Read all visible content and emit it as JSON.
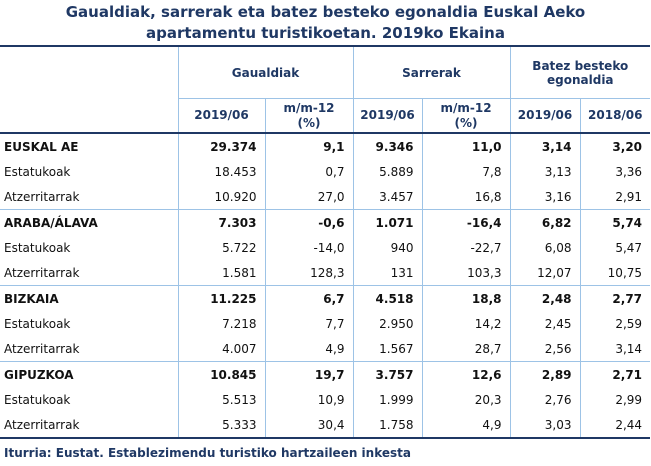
{
  "header": {
    "title": "Gaualdiak, sarrerak eta batez besteko egonaldia Euskal Aeko apartamentu turistikoetan. 2019ko Ekaina"
  },
  "table": {
    "groups": [
      "Gaualdiak",
      "Sarrerak",
      "Batez besteko egonaldia"
    ],
    "subheaders": [
      "2019/06",
      "m/m-12 (%)",
      "2019/06",
      "m/m-12 (%)",
      "2019/06",
      "2018/06"
    ],
    "regions": [
      {
        "label": "EUSKAL AE",
        "values": [
          "29.374",
          "9,1",
          "9.346",
          "11,0",
          "3,14",
          "3,20"
        ],
        "rows": [
          {
            "label": "Estatukoak",
            "values": [
              "18.453",
              "0,7",
              "5.889",
              "7,8",
              "3,13",
              "3,36"
            ]
          },
          {
            "label": "Atzerritarrak",
            "values": [
              "10.920",
              "27,0",
              "3.457",
              "16,8",
              "3,16",
              "2,91"
            ]
          }
        ]
      },
      {
        "label": "ARABA/ÁLAVA",
        "values": [
          "7.303",
          "-0,6",
          "1.071",
          "-16,4",
          "6,82",
          "5,74"
        ],
        "rows": [
          {
            "label": "Estatukoak",
            "values": [
              "5.722",
              "-14,0",
              "940",
              "-22,7",
              "6,08",
              "5,47"
            ]
          },
          {
            "label": "Atzerritarrak",
            "values": [
              "1.581",
              "128,3",
              "131",
              "103,3",
              "12,07",
              "10,75"
            ]
          }
        ]
      },
      {
        "label": "BIZKAIA",
        "values": [
          "11.225",
          "6,7",
          "4.518",
          "18,8",
          "2,48",
          "2,77"
        ],
        "rows": [
          {
            "label": "Estatukoak",
            "values": [
              "7.218",
              "7,7",
              "2.950",
              "14,2",
              "2,45",
              "2,59"
            ]
          },
          {
            "label": "Atzerritarrak",
            "values": [
              "4.007",
              "4,9",
              "1.567",
              "28,7",
              "2,56",
              "3,14"
            ]
          }
        ]
      },
      {
        "label": "GIPUZKOA",
        "values": [
          "10.845",
          "19,7",
          "3.757",
          "12,6",
          "2,89",
          "2,71"
        ],
        "rows": [
          {
            "label": "Estatukoak",
            "values": [
              "5.513",
              "10,9",
              "1.999",
              "20,3",
              "2,76",
              "2,99"
            ]
          },
          {
            "label": "Atzerritarrak",
            "values": [
              "5.333",
              "30,4",
              "1.758",
              "4,9",
              "3,03",
              "2,44"
            ]
          }
        ]
      }
    ]
  },
  "footer": {
    "source": "Iturria: Eustat. Establezimendu turistiko hartzaileen inkesta"
  }
}
